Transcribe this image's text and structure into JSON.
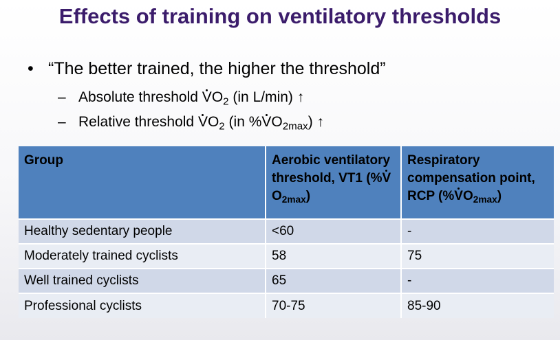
{
  "title": "Effects of training on ventilatory thresholds",
  "bullet": {
    "marker": "•",
    "text": "“The better trained, the higher the threshold”",
    "subitems": [
      {
        "dash": "–",
        "prefix": "Absolute threshold ",
        "v": "V",
        "o2": "O",
        "sub": "2",
        "suffix": " (in L/min) ↑"
      },
      {
        "dash": "–",
        "prefix": "Relative threshold ",
        "v": "V",
        "o2": "O",
        "sub": "2",
        "mid": " (in %",
        "v2": "V",
        "o2b": "O",
        "sub2": "2max",
        "suffix": ") ↑"
      }
    ]
  },
  "table": {
    "headers": {
      "group": "Group",
      "vt1": "Aerobic ventilatory threshold, VT1 (%",
      "rcp": "Respiratory compensation point, RCP (%",
      "v": "V",
      "o": "O",
      "sub": "2max",
      "close": ")"
    },
    "rows": [
      {
        "group": "Healthy sedentary people",
        "vt1": "<60",
        "rcp": "-"
      },
      {
        "group": "Moderately trained cyclists",
        "vt1": "58",
        "rcp": "75"
      },
      {
        "group": "Well trained cyclists",
        "vt1": "65",
        "rcp": "-"
      },
      {
        "group": "Professional cyclists",
        "vt1": "70-75",
        "rcp": "85-90"
      }
    ]
  }
}
